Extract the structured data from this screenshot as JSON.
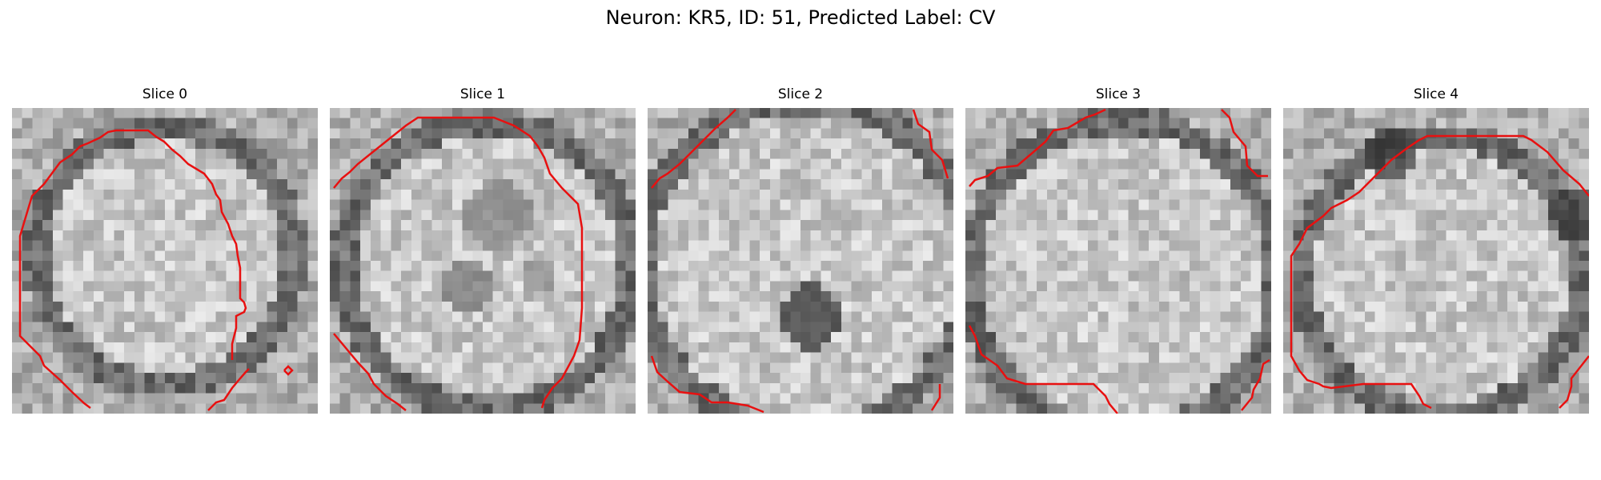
{
  "figure": {
    "title": "Neuron: KR5, ID: 51, Predicted Label: CV",
    "contour_color": "#e81010"
  },
  "slices": [
    {
      "label": "Slice 0"
    },
    {
      "label": "Slice 1"
    },
    {
      "label": "Slice 2"
    },
    {
      "label": "Slice 3"
    },
    {
      "label": "Slice 4"
    }
  ]
}
